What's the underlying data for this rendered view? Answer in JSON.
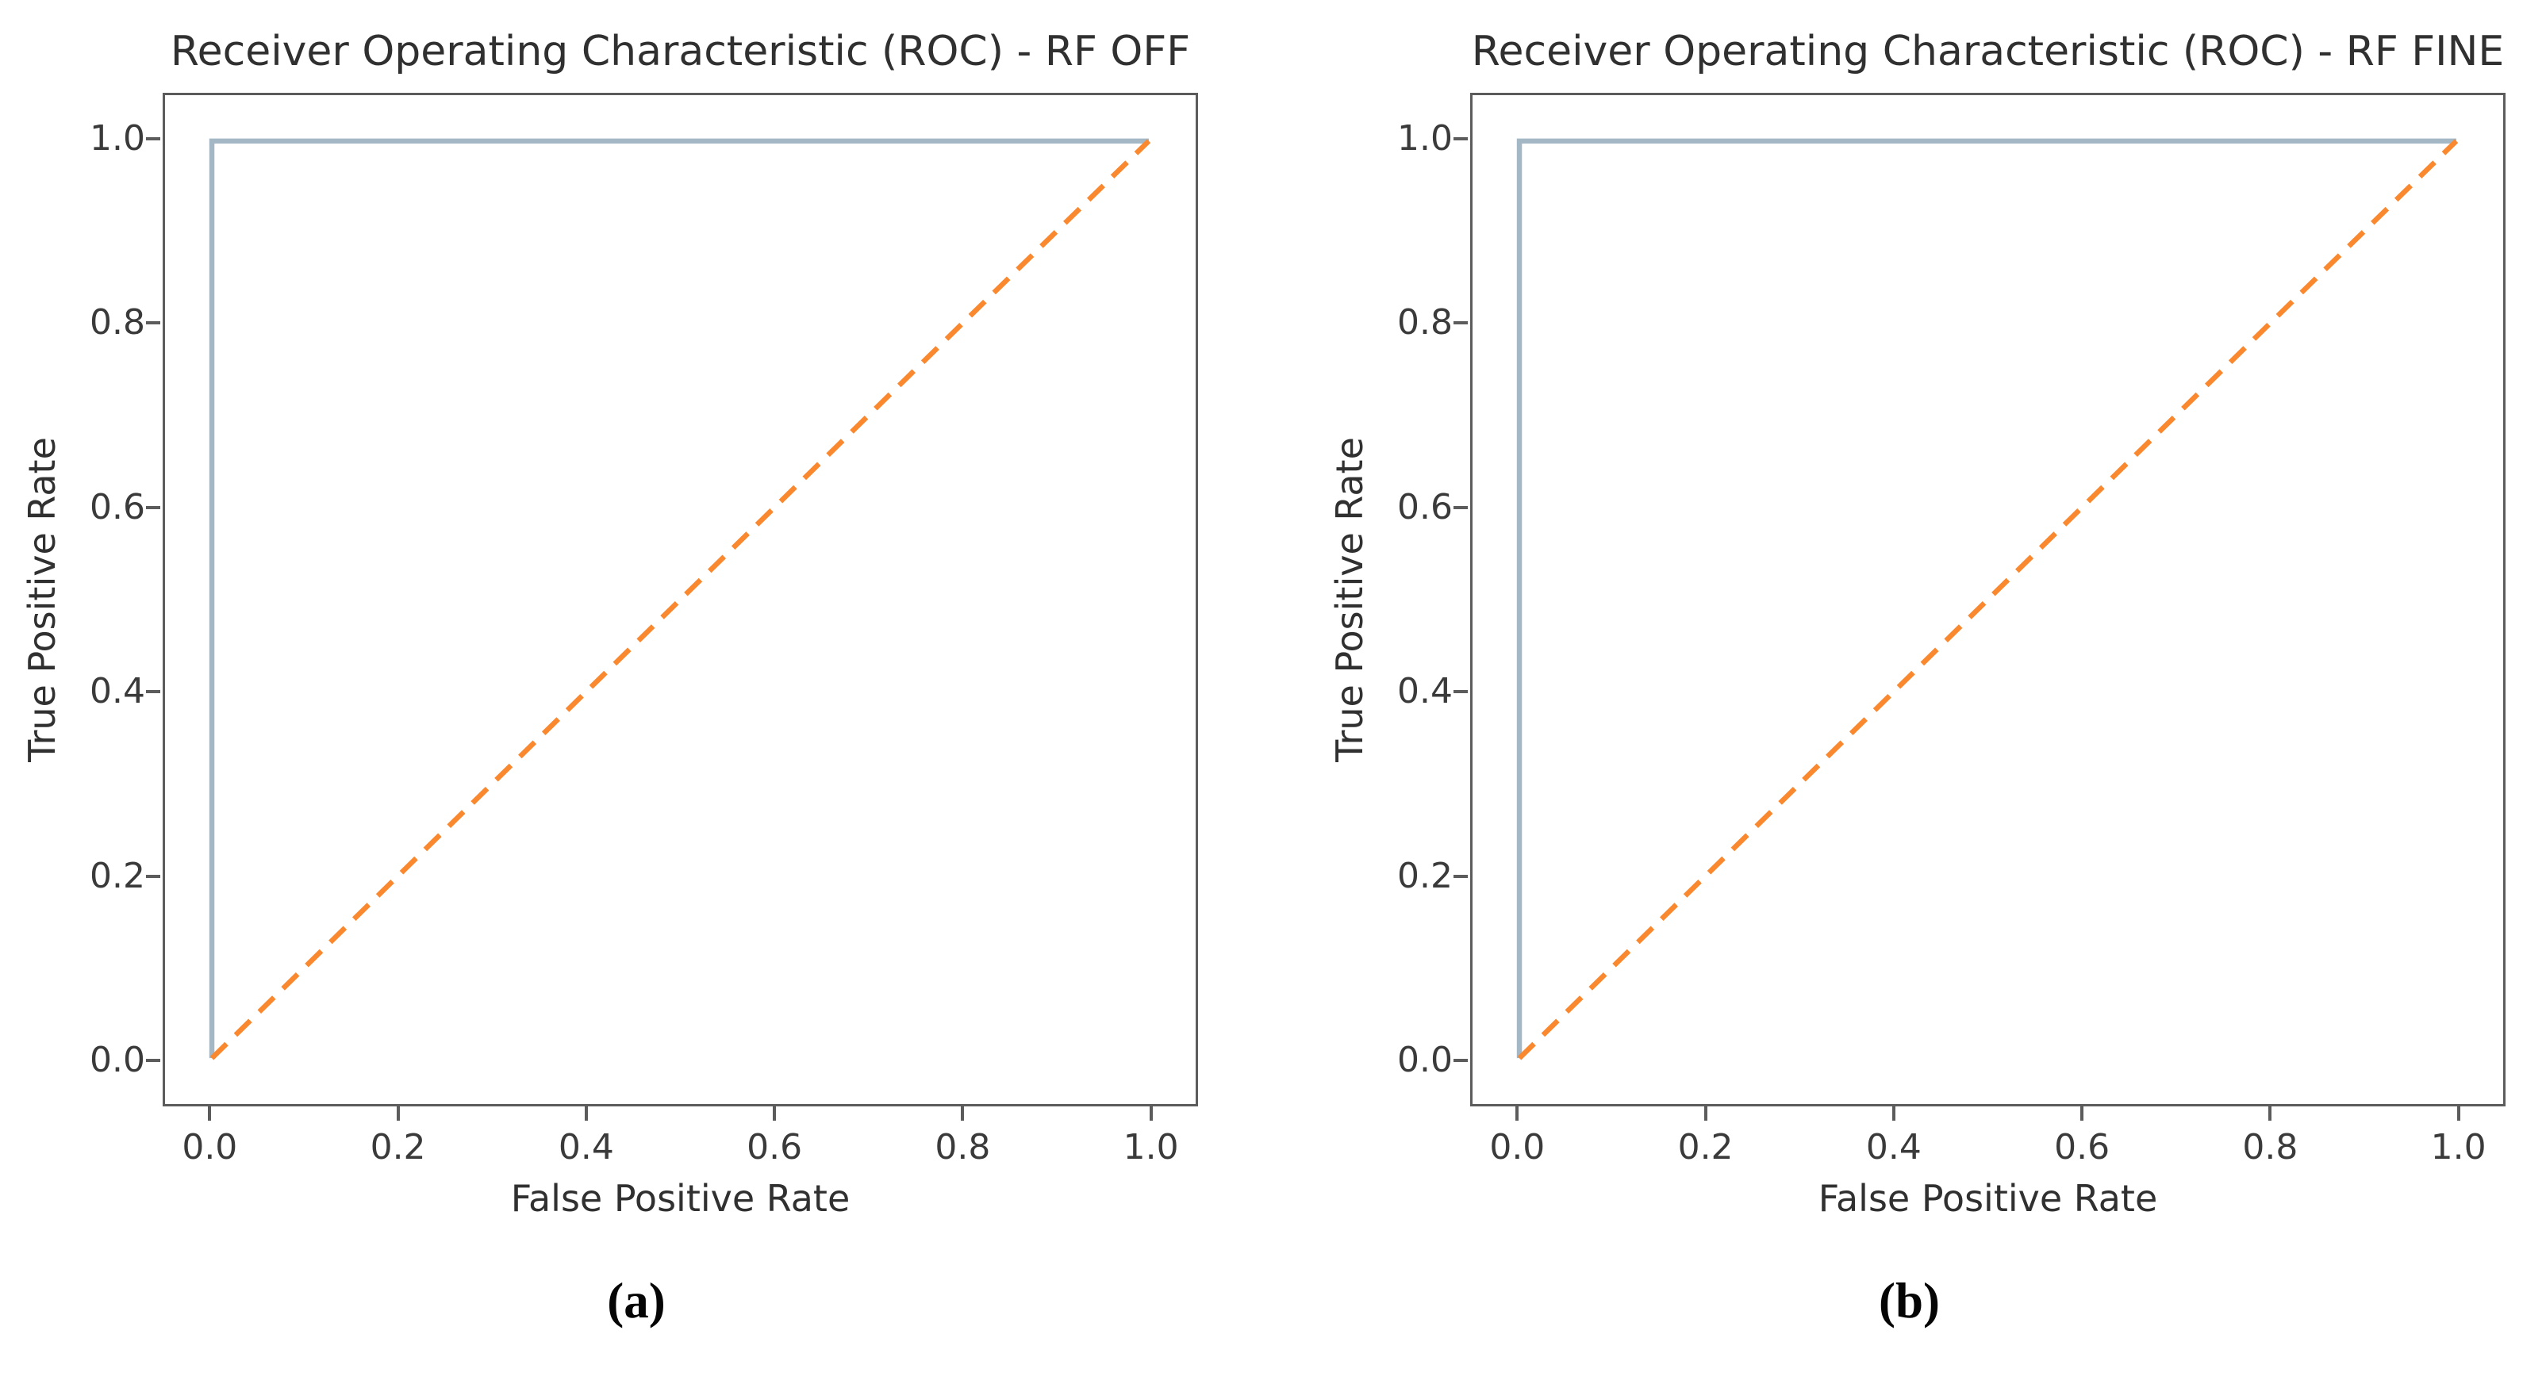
{
  "figure": {
    "background": "#ffffff",
    "frame_color": "#5c5c5c",
    "text_color": "#303030",
    "tick_text_color": "#3a3a3a"
  },
  "chart_data": [
    {
      "type": "line",
      "title": "Receiver Operating Characteristic (ROC) - RF OFF",
      "xlabel": "False Positive Rate",
      "ylabel": "True Positive Rate",
      "caption": "(a)",
      "xlim": [
        -0.05,
        1.05
      ],
      "ylim": [
        -0.05,
        1.05
      ],
      "grid": false,
      "legend": "none",
      "xticks": [
        0.0,
        0.2,
        0.4,
        0.6,
        0.8,
        1.0
      ],
      "xtick_labels": [
        "0.0",
        "0.2",
        "0.4",
        "0.6",
        "0.8",
        "1.0"
      ],
      "yticks": [
        0.0,
        0.2,
        0.4,
        0.6,
        0.8,
        1.0
      ],
      "ytick_labels": [
        "0.0",
        "0.2",
        "0.4",
        "0.6",
        "0.8",
        "1.0"
      ],
      "series": [
        {
          "name": "roc-curve-line",
          "x": [
            0,
            0,
            1
          ],
          "y": [
            0,
            1,
            1
          ],
          "color": "#a4b7c4",
          "style": "solid",
          "width": 6.5
        },
        {
          "name": "chance-diagonal-line",
          "x": [
            0,
            1
          ],
          "y": [
            0,
            1
          ],
          "color": "#f9882e",
          "style": "dashed",
          "width": 6.5
        }
      ]
    },
    {
      "type": "line",
      "title": "Receiver Operating Characteristic (ROC) - RF FINE",
      "xlabel": "False Positive Rate",
      "ylabel": "True Positive Rate",
      "caption": "(b)",
      "xlim": [
        -0.05,
        1.05
      ],
      "ylim": [
        -0.05,
        1.05
      ],
      "grid": false,
      "legend": "none",
      "xticks": [
        0.0,
        0.2,
        0.4,
        0.6,
        0.8,
        1.0
      ],
      "xtick_labels": [
        "0.0",
        "0.2",
        "0.4",
        "0.6",
        "0.8",
        "1.0"
      ],
      "yticks": [
        0.0,
        0.2,
        0.4,
        0.6,
        0.8,
        1.0
      ],
      "ytick_labels": [
        "0.0",
        "0.2",
        "0.4",
        "0.6",
        "0.8",
        "1.0"
      ],
      "series": [
        {
          "name": "roc-curve-line",
          "x": [
            0,
            0,
            1
          ],
          "y": [
            0,
            1,
            1
          ],
          "color": "#a4b7c4",
          "style": "solid",
          "width": 6.5
        },
        {
          "name": "chance-diagonal-line",
          "x": [
            0,
            1
          ],
          "y": [
            0,
            1
          ],
          "color": "#f9882e",
          "style": "dashed",
          "width": 6.5
        }
      ]
    }
  ]
}
